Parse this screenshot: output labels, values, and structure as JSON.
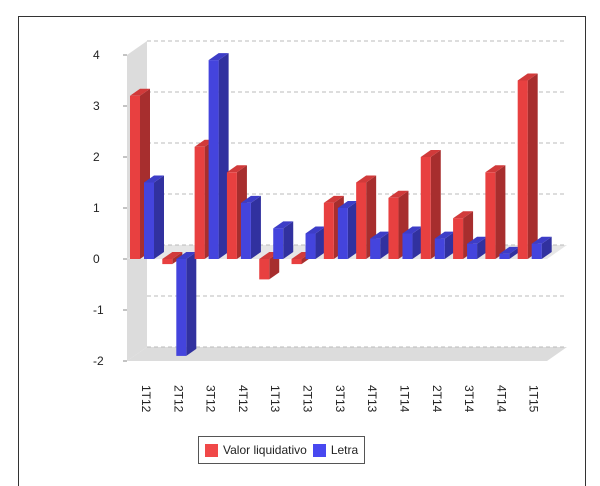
{
  "chart_data": {
    "type": "bar",
    "style": "3d-grouped",
    "categories": [
      "1T12",
      "2T12",
      "3T12",
      "4T12",
      "1T13",
      "2T13",
      "3T13",
      "4T13",
      "1T14",
      "2T14",
      "3T14",
      "4T14",
      "1T15"
    ],
    "series": [
      {
        "name": "Valor liquidativo",
        "color": "#e84040",
        "values": [
          3.2,
          -0.1,
          2.2,
          1.7,
          -0.4,
          -0.1,
          1.1,
          1.5,
          1.2,
          2.0,
          0.8,
          1.7,
          3.5
        ]
      },
      {
        "name": "Letra",
        "color": "#4444dd",
        "values": [
          1.5,
          -1.9,
          3.9,
          1.1,
          0.6,
          0.5,
          1.0,
          0.4,
          0.5,
          0.4,
          0.3,
          0.1,
          0.3
        ]
      }
    ],
    "yticks": [
      -2,
      -1,
      0,
      1,
      2,
      3,
      4
    ],
    "ylim": [
      -2,
      4
    ],
    "xlabel": "",
    "ylabel": "",
    "grid": true,
    "legend_position": "bottom"
  }
}
